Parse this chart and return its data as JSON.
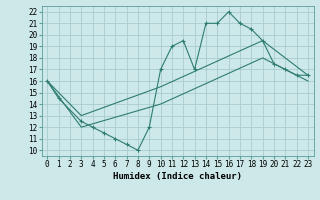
{
  "title": "",
  "xlabel": "Humidex (Indice chaleur)",
  "xlim": [
    -0.5,
    23.5
  ],
  "ylim": [
    9.5,
    22.5
  ],
  "xticks": [
    0,
    1,
    2,
    3,
    4,
    5,
    6,
    7,
    8,
    9,
    10,
    11,
    12,
    13,
    14,
    15,
    16,
    17,
    18,
    19,
    20,
    21,
    22,
    23
  ],
  "yticks": [
    10,
    11,
    12,
    13,
    14,
    15,
    16,
    17,
    18,
    19,
    20,
    21,
    22
  ],
  "bg_color": "#cce8e8",
  "grid_color": "#aacccc",
  "line_color": "#2e7d6e",
  "line1_x": [
    0,
    1,
    3,
    4,
    5,
    6,
    7,
    8,
    9,
    10,
    11,
    12,
    13,
    14,
    15,
    16,
    17,
    18,
    19,
    20,
    21,
    22,
    23
  ],
  "line1_y": [
    16,
    14.5,
    12.5,
    12,
    11.5,
    11,
    10.5,
    10,
    12,
    17,
    19,
    19.5,
    17,
    21,
    21,
    22,
    21,
    20.5,
    19.5,
    17.5,
    17,
    16.5,
    16.5
  ],
  "line2_x": [
    0,
    3,
    10,
    19,
    23
  ],
  "line2_y": [
    16,
    13,
    15.5,
    19.5,
    16.5
  ],
  "line3_x": [
    0,
    3,
    10,
    19,
    23
  ],
  "line3_y": [
    16,
    12,
    14,
    18,
    16
  ],
  "tick_fontsize": 5.5,
  "label_fontsize": 6.5
}
